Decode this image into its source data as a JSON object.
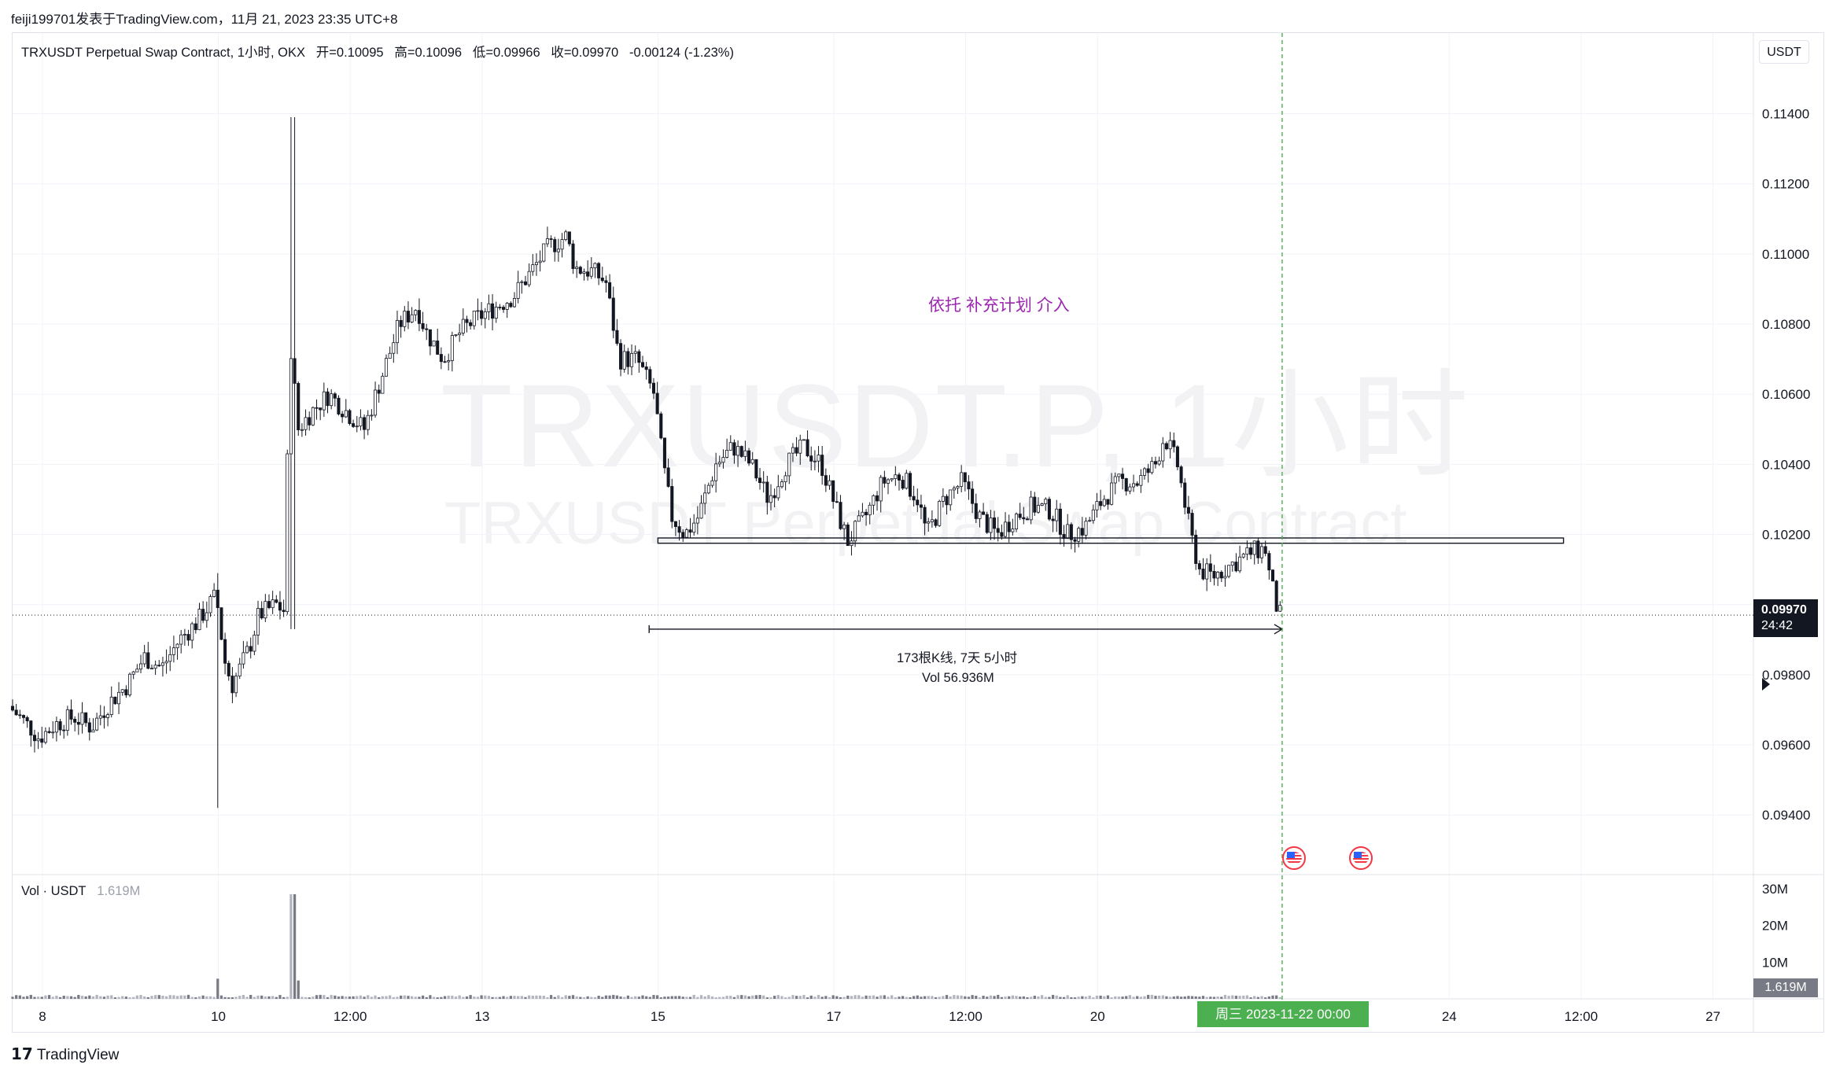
{
  "header": {
    "caption": "feiji199701发表于TradingView.com，11月 21, 2023 23:35 UTC+8"
  },
  "legend": {
    "symbol": "TRXUSDT Perpetual Swap Contract, 1小时, OKX",
    "open": "开=0.10095",
    "high": "高=0.10096",
    "low": "低=0.09966",
    "close": "收=0.09970",
    "change": "-0.00124 (-1.23%)"
  },
  "currency": "USDT",
  "watermark": {
    "line1": "TRXUSDT.P, 1小时",
    "line2": "TRXUSDT Perpetual Swap Contract"
  },
  "annotation": "依托 补充计划 介入",
  "measure": {
    "bars": "173根K线, 7天 5小时",
    "vol": "Vol 56.936M"
  },
  "volume_legend": {
    "label": "Vol · USDT",
    "value": "1.619M"
  },
  "last_price": {
    "price": "0.09970",
    "countdown": "24:42"
  },
  "volume_last": "1.619M",
  "crosshair_date": "周三 2023-11-22   00:00",
  "branding": {
    "logo_mark": "17",
    "name": "TradingView"
  },
  "colors": {
    "up": "#131722",
    "down": "#131722",
    "annotation": "#9c27b0",
    "crosshair": "#4caf50",
    "event": "#f23645"
  },
  "chart_data": {
    "type": "candlestick",
    "interval": "1小时",
    "exchange": "OKX",
    "y_axis": {
      "ticks": [
        "0.11400",
        "0.11200",
        "0.11000",
        "0.10800",
        "0.10600",
        "0.10400",
        "0.10200",
        "0.10000",
        "0.09800",
        "0.09600",
        "0.09400"
      ],
      "range": [
        0.0923,
        0.1163
      ]
    },
    "volume_axis": {
      "ticks": [
        "30M",
        "20M",
        "10M"
      ],
      "range": [
        0,
        30000000
      ]
    },
    "x_axis": {
      "ticks": [
        {
          "label": "8",
          "day": 8
        },
        {
          "label": "10",
          "day": 10
        },
        {
          "label": "12:00",
          "day": 11.5
        },
        {
          "label": "13",
          "day": 13
        },
        {
          "label": "15",
          "day": 15
        },
        {
          "label": "17",
          "day": 17
        },
        {
          "label": "12:00",
          "day": 18.5
        },
        {
          "label": "20",
          "day": 20
        },
        {
          "label": "24",
          "day": 24
        },
        {
          "label": "12:00",
          "day": 25.5
        },
        {
          "label": "27",
          "day": 27
        }
      ],
      "range": [
        7.66,
        27.46
      ]
    },
    "support_zone": {
      "from_day": 15,
      "to_day": 25.3,
      "price_low": 0.10175,
      "price_high": 0.1019
    },
    "measure_range": {
      "from_day": 14.9,
      "to_day": 22.1,
      "price": 0.0993
    },
    "crosshair_day": 22.1,
    "last_price": 0.0997,
    "price_path": [
      [
        7.66,
        0.0971
      ],
      [
        7.9,
        0.0965
      ],
      [
        8.0,
        0.0962
      ],
      [
        8.2,
        0.0966
      ],
      [
        8.4,
        0.0968
      ],
      [
        8.6,
        0.0965
      ],
      [
        8.8,
        0.0972
      ],
      [
        9.0,
        0.0977
      ],
      [
        9.2,
        0.0985
      ],
      [
        9.4,
        0.0982
      ],
      [
        9.6,
        0.099
      ],
      [
        9.8,
        0.0995
      ],
      [
        10.0,
        0.1002
      ],
      [
        10.05,
        0.0998
      ],
      [
        10.1,
        0.0985
      ],
      [
        10.2,
        0.0977
      ],
      [
        10.4,
        0.0988
      ],
      [
        10.5,
        0.0997
      ],
      [
        10.7,
        0.1
      ],
      [
        10.8,
        0.0998
      ],
      [
        10.85,
        0.1078
      ],
      [
        10.95,
        0.105
      ],
      [
        11.1,
        0.1055
      ],
      [
        11.3,
        0.106
      ],
      [
        11.5,
        0.1055
      ],
      [
        11.7,
        0.105
      ],
      [
        11.9,
        0.1065
      ],
      [
        12.1,
        0.108
      ],
      [
        12.3,
        0.1085
      ],
      [
        12.4,
        0.1078
      ],
      [
        12.6,
        0.107
      ],
      [
        12.8,
        0.1078
      ],
      [
        13.0,
        0.1082
      ],
      [
        13.2,
        0.1085
      ],
      [
        13.4,
        0.1088
      ],
      [
        13.6,
        0.1095
      ],
      [
        13.8,
        0.1102
      ],
      [
        14.0,
        0.1105
      ],
      [
        14.1,
        0.1096
      ],
      [
        14.3,
        0.1095
      ],
      [
        14.45,
        0.1092
      ],
      [
        14.6,
        0.107
      ],
      [
        14.8,
        0.107
      ],
      [
        15.0,
        0.106
      ],
      [
        15.1,
        0.104
      ],
      [
        15.2,
        0.1025
      ],
      [
        15.35,
        0.102
      ],
      [
        15.5,
        0.1025
      ],
      [
        15.7,
        0.104
      ],
      [
        15.9,
        0.1045
      ],
      [
        16.1,
        0.104
      ],
      [
        16.3,
        0.103
      ],
      [
        16.5,
        0.104
      ],
      [
        16.7,
        0.1045
      ],
      [
        16.9,
        0.104
      ],
      [
        17.1,
        0.1025
      ],
      [
        17.2,
        0.1018
      ],
      [
        17.4,
        0.1025
      ],
      [
        17.6,
        0.1035
      ],
      [
        17.8,
        0.1037
      ],
      [
        18.0,
        0.103
      ],
      [
        18.1,
        0.102
      ],
      [
        18.3,
        0.103
      ],
      [
        18.5,
        0.1035
      ],
      [
        18.7,
        0.1025
      ],
      [
        18.9,
        0.102
      ],
      [
        19.1,
        0.1025
      ],
      [
        19.3,
        0.1028
      ],
      [
        19.5,
        0.1027
      ],
      [
        19.7,
        0.102
      ],
      [
        19.9,
        0.1022
      ],
      [
        20.1,
        0.103
      ],
      [
        20.3,
        0.1035
      ],
      [
        20.5,
        0.1035
      ],
      [
        20.7,
        0.104
      ],
      [
        20.8,
        0.1048
      ],
      [
        20.95,
        0.104
      ],
      [
        21.1,
        0.102
      ],
      [
        21.2,
        0.101
      ],
      [
        21.35,
        0.1008
      ],
      [
        21.6,
        0.1012
      ],
      [
        21.8,
        0.1015
      ],
      [
        21.95,
        0.1016
      ],
      [
        22.0,
        0.1008
      ],
      [
        22.1,
        0.0997
      ]
    ],
    "volume_spike_days": [
      10.0,
      10.85
    ]
  }
}
